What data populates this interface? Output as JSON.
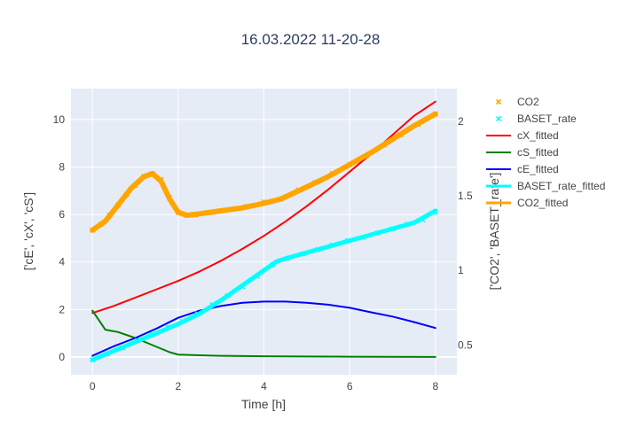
{
  "chart_data": {
    "type": "line",
    "title": "16.03.2022 11-20-28",
    "xlabel": "Time [h]",
    "ylabel_left": "['cE', 'cX', 'cS']",
    "ylabel_right": "['CO2', 'BASET_rate']",
    "xlim": [
      -0.5,
      8.5
    ],
    "ylim_left": [
      -0.75,
      11.3
    ],
    "ylim_right": [
      0.3,
      2.22
    ],
    "x_ticks": [
      0,
      2,
      4,
      6,
      8
    ],
    "y_left_ticks": [
      0,
      2,
      4,
      6,
      8,
      10
    ],
    "y_right_ticks": [
      0.5,
      1,
      1.5,
      2
    ],
    "grid": true,
    "legend_position": "top-right",
    "colors": {
      "plot_bg": "#e5ecf6",
      "grid": "#ffffff",
      "cX_fitted": "#ff0000",
      "cS_fitted": "#008000",
      "cE_fitted": "#0000ff",
      "BASET_rate_fitted": "#00ffff",
      "CO2_fitted": "#ffa500"
    },
    "legend": [
      {
        "name": "CO2",
        "kind": "marker",
        "color": "#ffa500"
      },
      {
        "name": "BASET_rate",
        "kind": "marker",
        "color": "#00ffff"
      },
      {
        "name": "cX_fitted",
        "kind": "line",
        "color": "#ff0000"
      },
      {
        "name": "cS_fitted",
        "kind": "line",
        "color": "#008000"
      },
      {
        "name": "cE_fitted",
        "kind": "line",
        "color": "#0000ff"
      },
      {
        "name": "BASET_rate_fitted",
        "kind": "line",
        "color": "#00ffff"
      },
      {
        "name": "CO2_fitted",
        "kind": "line",
        "color": "#ffa500"
      }
    ],
    "series": [
      {
        "name": "cX_fitted",
        "axis": "left",
        "color": "#ff0000",
        "width": 2,
        "x": [
          0,
          0.5,
          1,
          1.5,
          2,
          2.5,
          3,
          3.5,
          4,
          4.5,
          5,
          5.5,
          6,
          6.5,
          7,
          7.5,
          8
        ],
        "y": [
          1.85,
          2.15,
          2.5,
          2.85,
          3.2,
          3.6,
          4.05,
          4.55,
          5.1,
          5.7,
          6.35,
          7.05,
          7.8,
          8.55,
          9.35,
          10.15,
          10.75
        ]
      },
      {
        "name": "cS_fitted",
        "axis": "left",
        "color": "#008000",
        "width": 2,
        "x": [
          0,
          0.3,
          0.6,
          1,
          1.4,
          1.8,
          2,
          2.5,
          3,
          4,
          5,
          6,
          7,
          8
        ],
        "y": [
          1.95,
          1.15,
          1.05,
          0.8,
          0.5,
          0.2,
          0.1,
          0.07,
          0.05,
          0.03,
          0.02,
          0.01,
          0.005,
          0.0
        ]
      },
      {
        "name": "cE_fitted",
        "axis": "left",
        "color": "#0000ff",
        "width": 2,
        "x": [
          0,
          0.5,
          1,
          1.5,
          2,
          2.5,
          3,
          3.5,
          4,
          4.5,
          5,
          5.5,
          6,
          6.5,
          7,
          7.5,
          8
        ],
        "y": [
          0.05,
          0.45,
          0.8,
          1.2,
          1.65,
          1.95,
          2.15,
          2.28,
          2.33,
          2.33,
          2.28,
          2.2,
          2.07,
          1.88,
          1.7,
          1.47,
          1.22
        ]
      },
      {
        "name": "BASET_rate_fitted",
        "axis": "right",
        "color": "#00ffff",
        "width": 5,
        "x": [
          0,
          0.5,
          1,
          1.5,
          2,
          2.5,
          3,
          3.5,
          4,
          4.3,
          4.5,
          5,
          5.5,
          6,
          6.5,
          7,
          7.5,
          8
        ],
        "y": [
          0.4,
          0.46,
          0.52,
          0.58,
          0.64,
          0.71,
          0.8,
          0.9,
          1.0,
          1.06,
          1.08,
          1.12,
          1.16,
          1.2,
          1.24,
          1.28,
          1.32,
          1.4
        ]
      },
      {
        "name": "CO2_fitted",
        "axis": "right",
        "color": "#ffa500",
        "width": 6,
        "x": [
          0,
          0.3,
          0.6,
          0.9,
          1.2,
          1.4,
          1.6,
          1.8,
          2.0,
          2.2,
          2.5,
          3,
          3.5,
          4,
          4.4,
          5,
          5.5,
          6,
          6.5,
          7,
          7.5,
          8
        ],
        "y": [
          1.27,
          1.33,
          1.44,
          1.55,
          1.63,
          1.65,
          1.6,
          1.48,
          1.39,
          1.37,
          1.38,
          1.4,
          1.42,
          1.45,
          1.48,
          1.56,
          1.63,
          1.71,
          1.79,
          1.88,
          1.97,
          2.05
        ]
      },
      {
        "name": "BASET_rate",
        "axis": "right",
        "color": "#00ffff",
        "kind": "marker",
        "x": [
          0,
          0.35,
          0.7,
          1.05,
          1.4,
          1.75,
          2.1,
          2.45,
          2.8,
          3.15,
          3.5,
          3.85,
          4.2,
          4.55,
          4.9,
          5.25,
          5.6,
          5.95,
          6.3,
          6.65,
          7.0,
          7.35,
          7.7,
          8.0
        ],
        "y": [
          0.4,
          0.44,
          0.48,
          0.53,
          0.57,
          0.62,
          0.66,
          0.71,
          0.77,
          0.83,
          0.89,
          0.96,
          1.04,
          1.08,
          1.11,
          1.14,
          1.17,
          1.2,
          1.22,
          1.25,
          1.28,
          1.31,
          1.34,
          1.39
        ]
      },
      {
        "name": "CO2",
        "axis": "right",
        "color": "#ffa500",
        "kind": "marker",
        "x": [
          0,
          0.2,
          0.4,
          0.6,
          0.8,
          1.0,
          1.2,
          1.4,
          1.6,
          1.8,
          2.0,
          2.2,
          2.4,
          2.8,
          3.2,
          3.6,
          4.0,
          4.4,
          4.8,
          5.2,
          5.6,
          6.0,
          6.4,
          6.8,
          7.2,
          7.6,
          8.0
        ],
        "y": [
          1.27,
          1.31,
          1.37,
          1.44,
          1.51,
          1.57,
          1.63,
          1.65,
          1.61,
          1.49,
          1.39,
          1.37,
          1.37,
          1.39,
          1.41,
          1.43,
          1.46,
          1.48,
          1.54,
          1.59,
          1.65,
          1.71,
          1.77,
          1.84,
          1.91,
          1.98,
          2.05
        ]
      }
    ]
  }
}
